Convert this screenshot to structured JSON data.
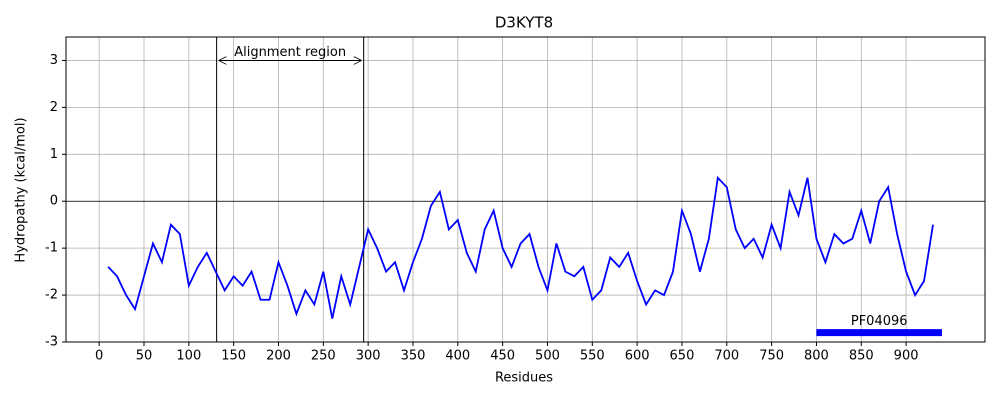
{
  "chart_data": {
    "type": "line",
    "title": "D3KYT8",
    "xlabel": "Residues",
    "ylabel": "Hydropathy (kcal/mol)",
    "x": [
      10,
      20,
      30,
      40,
      50,
      60,
      70,
      80,
      90,
      100,
      110,
      120,
      130,
      140,
      150,
      160,
      170,
      180,
      190,
      200,
      210,
      220,
      230,
      240,
      250,
      260,
      270,
      280,
      290,
      300,
      310,
      320,
      330,
      340,
      350,
      360,
      370,
      380,
      390,
      400,
      410,
      420,
      430,
      440,
      450,
      460,
      470,
      480,
      490,
      500,
      510,
      520,
      530,
      540,
      550,
      560,
      570,
      580,
      590,
      600,
      610,
      620,
      630,
      640,
      650,
      660,
      670,
      680,
      690,
      700,
      710,
      720,
      730,
      740,
      750,
      760,
      770,
      780,
      790,
      800,
      810,
      820,
      830,
      840,
      850,
      860,
      870,
      880,
      890,
      900,
      910,
      920,
      930
    ],
    "values": [
      -1.4,
      -1.6,
      -2.0,
      -2.3,
      -1.6,
      -0.9,
      -1.3,
      -0.5,
      -0.7,
      -1.8,
      -1.4,
      -1.1,
      -1.5,
      -1.9,
      -1.6,
      -1.8,
      -1.5,
      -2.1,
      -2.1,
      -1.3,
      -1.8,
      -2.4,
      -1.9,
      -2.2,
      -1.5,
      -2.5,
      -1.6,
      -2.2,
      -1.4,
      -0.6,
      -1.0,
      -1.5,
      -1.3,
      -1.9,
      -1.3,
      -0.8,
      -0.1,
      0.2,
      -0.6,
      -0.4,
      -1.1,
      -1.5,
      -0.6,
      -0.2,
      -1.0,
      -1.4,
      -0.9,
      -0.7,
      -1.4,
      -1.9,
      -0.9,
      -1.5,
      -1.6,
      -1.4,
      -2.1,
      -1.9,
      -1.2,
      -1.4,
      -1.1,
      -1.7,
      -2.2,
      -1.9,
      -2.0,
      -1.5,
      -0.2,
      -0.7,
      -1.5,
      -0.8,
      0.5,
      0.3,
      -0.6,
      -1.0,
      -0.8,
      -1.2,
      -0.5,
      -1.0,
      0.2,
      -0.3,
      0.5,
      -0.8,
      -1.3,
      -0.7,
      -0.9,
      -0.8,
      -0.2,
      -0.9,
      0.0,
      0.3,
      -0.7,
      -1.5,
      -2.0,
      -1.7,
      -0.5
    ],
    "color": "#0000ff",
    "xlim": [
      -37,
      988
    ],
    "ylim": [
      -3,
      3.5
    ],
    "xticks": [
      0,
      50,
      100,
      150,
      200,
      250,
      300,
      350,
      400,
      450,
      500,
      550,
      600,
      650,
      700,
      750,
      800,
      850,
      900
    ],
    "yticks": [
      -3,
      -2,
      -1,
      0,
      1,
      2,
      3
    ],
    "grid": true,
    "region": {
      "label": "Alignment region",
      "start": 131,
      "end": 295,
      "y": 3
    },
    "domain": {
      "label": "PF04096",
      "start": 800,
      "end": 940,
      "y": -2.8
    }
  }
}
